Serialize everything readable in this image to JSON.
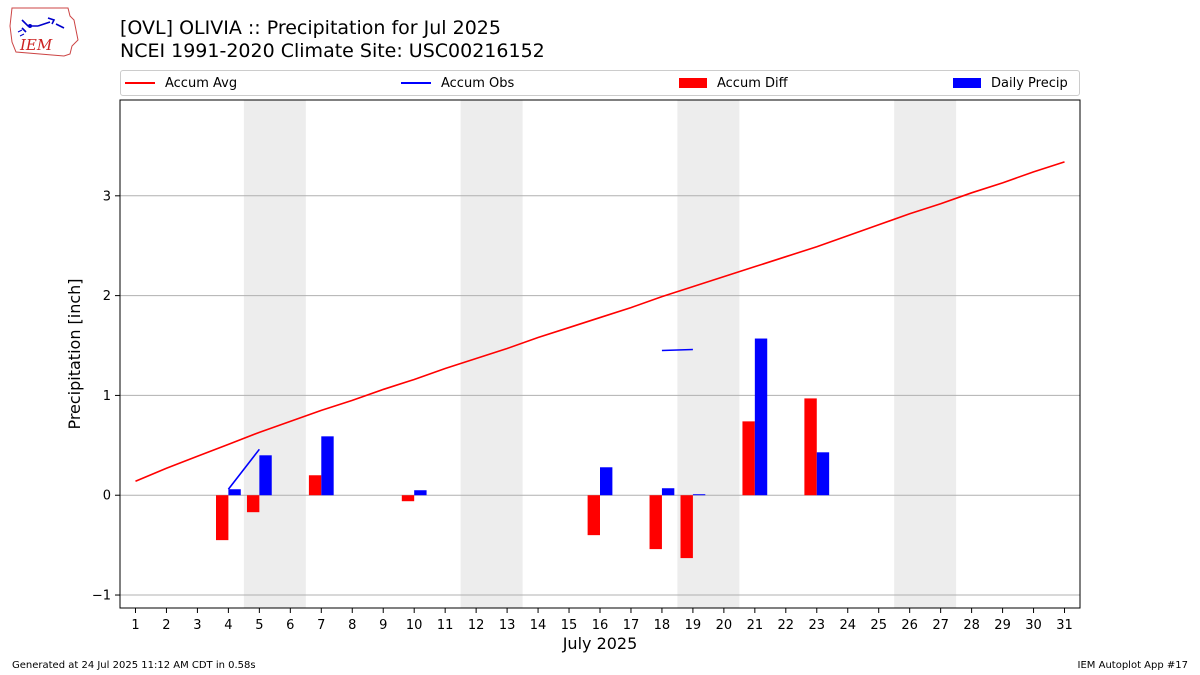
{
  "header": {
    "title_line1": "[OVL] OLIVIA :: Precipitation for Jul 2025",
    "title_line2": "NCEI 1991-2020 Climate Site: USC00216152",
    "logo_text": "IEM"
  },
  "legend": {
    "items": [
      {
        "label": "Accum Avg",
        "color": "#ff0000",
        "kind": "line"
      },
      {
        "label": "Accum Obs",
        "color": "#0000ff",
        "kind": "line"
      },
      {
        "label": "Accum Diff",
        "color": "#ff0000",
        "kind": "bar"
      },
      {
        "label": "Daily Precip",
        "color": "#0000ff",
        "kind": "bar"
      }
    ]
  },
  "footer": {
    "left": "Generated at 24 Jul 2025 11:12 AM CDT in 0.58s",
    "right": "IEM Autoplot App #17"
  },
  "chart_data": {
    "type": "bar",
    "title": "[OVL] OLIVIA :: Precipitation for Jul 2025",
    "xlabel": "July 2025",
    "ylabel": "Precipitation [inch]",
    "xlim": [
      0.5,
      31.5
    ],
    "ylim": [
      -1.13,
      3.96
    ],
    "yticks": [
      -1,
      0,
      1,
      2,
      3
    ],
    "ytick_labels": [
      "−1",
      "0",
      "1",
      "2",
      "3"
    ],
    "xticks": [
      1,
      2,
      3,
      4,
      5,
      6,
      7,
      8,
      9,
      10,
      11,
      12,
      13,
      14,
      15,
      16,
      17,
      18,
      19,
      20,
      21,
      22,
      23,
      24,
      25,
      26,
      27,
      28,
      29,
      30,
      31
    ],
    "xtick_labels": [
      "1",
      "2",
      "3",
      "4",
      "5",
      "6",
      "7",
      "8",
      "9",
      "10",
      "11",
      "12",
      "13",
      "14",
      "15",
      "16",
      "17",
      "18",
      "19",
      "20",
      "21",
      "22",
      "23",
      "24",
      "25",
      "26",
      "27",
      "28",
      "29",
      "30",
      "31"
    ],
    "weekend_spans": [
      [
        4.5,
        6.5
      ],
      [
        11.5,
        13.5
      ],
      [
        18.5,
        20.5
      ],
      [
        25.5,
        27.5
      ]
    ],
    "grid": "y",
    "series": [
      {
        "name": "Accum Avg",
        "type": "line",
        "color": "#ff0000",
        "x": [
          1,
          2,
          3,
          4,
          5,
          6,
          7,
          8,
          9,
          10,
          11,
          12,
          13,
          14,
          15,
          16,
          17,
          18,
          19,
          20,
          21,
          22,
          23,
          24,
          25,
          26,
          27,
          28,
          29,
          30,
          31
        ],
        "values": [
          0.14,
          0.27,
          0.39,
          0.51,
          0.63,
          0.74,
          0.85,
          0.95,
          1.06,
          1.16,
          1.27,
          1.37,
          1.47,
          1.58,
          1.68,
          1.78,
          1.88,
          1.99,
          2.09,
          2.19,
          2.29,
          2.39,
          2.49,
          2.6,
          2.71,
          2.82,
          2.92,
          3.03,
          3.13,
          3.24,
          3.34
        ]
      },
      {
        "name": "Accum Obs",
        "type": "line",
        "color": "#0000ff",
        "segments": [
          {
            "x": [
              4,
              5
            ],
            "values": [
              0.06,
              0.46
            ]
          },
          {
            "x": [
              18,
              19
            ],
            "values": [
              1.45,
              1.46
            ]
          }
        ]
      },
      {
        "name": "Accum Diff",
        "type": "bar",
        "color": "#ff0000",
        "x": [
          4,
          5,
          7,
          10,
          16,
          18,
          19,
          21,
          23
        ],
        "values": [
          -0.45,
          -0.17,
          0.2,
          -0.06,
          -0.4,
          -0.54,
          -0.63,
          0.74,
          0.97
        ]
      },
      {
        "name": "Daily Precip",
        "type": "bar",
        "color": "#0000ff",
        "x": [
          4,
          5,
          7,
          10,
          16,
          18,
          19,
          21,
          23
        ],
        "values": [
          0.06,
          0.4,
          0.59,
          0.05,
          0.28,
          0.07,
          0.01,
          1.57,
          0.43
        ]
      }
    ]
  }
}
